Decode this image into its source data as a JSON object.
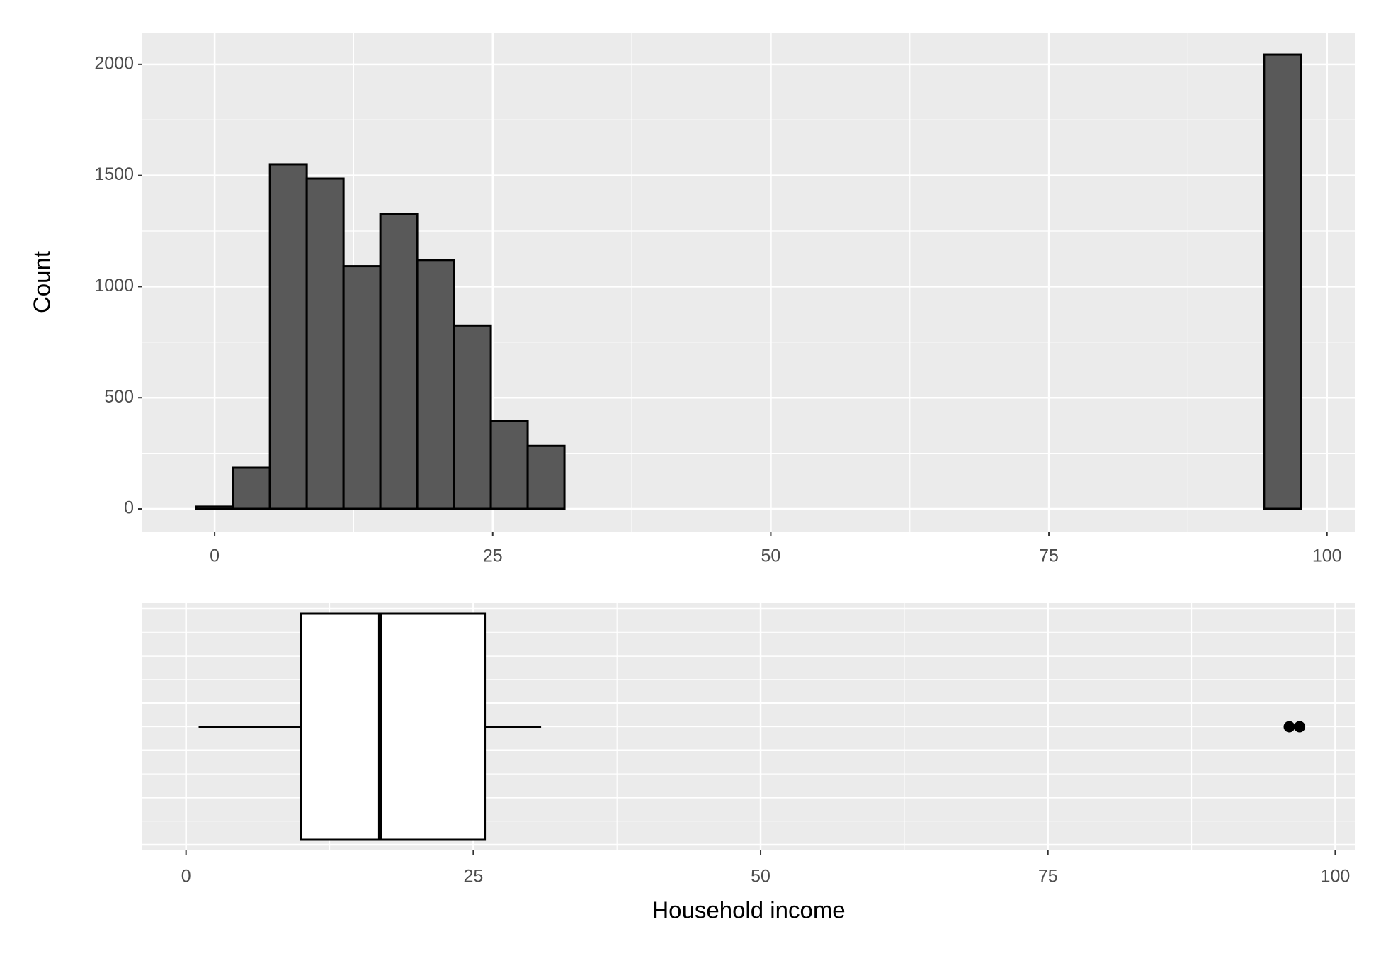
{
  "chart_data": [
    {
      "type": "histogram",
      "y_label": "Count",
      "color": "#595959",
      "bins": [
        -1.65,
        1.66,
        4.97,
        8.28,
        11.59,
        14.9,
        18.21,
        21.52,
        24.83,
        28.14,
        31.45,
        34.76,
        38.07,
        41.38,
        44.69,
        48,
        51.31,
        54.62,
        57.93,
        61.24,
        64.55,
        67.86,
        71.17,
        74.48,
        77.79,
        81.1,
        84.41,
        87.72,
        91.03,
        94.34,
        97.65
      ],
      "counts": [
        10,
        185,
        1550,
        1486,
        1092,
        1327,
        1120,
        825,
        394,
        283,
        0,
        0,
        0,
        0,
        0,
        0,
        0,
        0,
        0,
        0,
        0,
        0,
        0,
        0,
        0,
        0,
        0,
        0,
        0,
        2044
      ],
      "xlim": [
        -6.5,
        102.5
      ],
      "ylim": [
        -102,
        2143
      ],
      "xticks": [
        0,
        25,
        50,
        75,
        100
      ],
      "yticks": [
        0,
        500,
        1000,
        1500,
        2000
      ],
      "grid": true
    },
    {
      "type": "boxplot",
      "x_label": "Household income",
      "whisker_low": 1.1,
      "q1": 10,
      "median": 16.9,
      "q3": 26,
      "whisker_high": 30.9,
      "outliers": [
        96,
        96.9
      ],
      "xlim": [
        -3.8,
        101.7
      ],
      "xticks": [
        0,
        25,
        50,
        75,
        100
      ],
      "grid": true
    }
  ]
}
